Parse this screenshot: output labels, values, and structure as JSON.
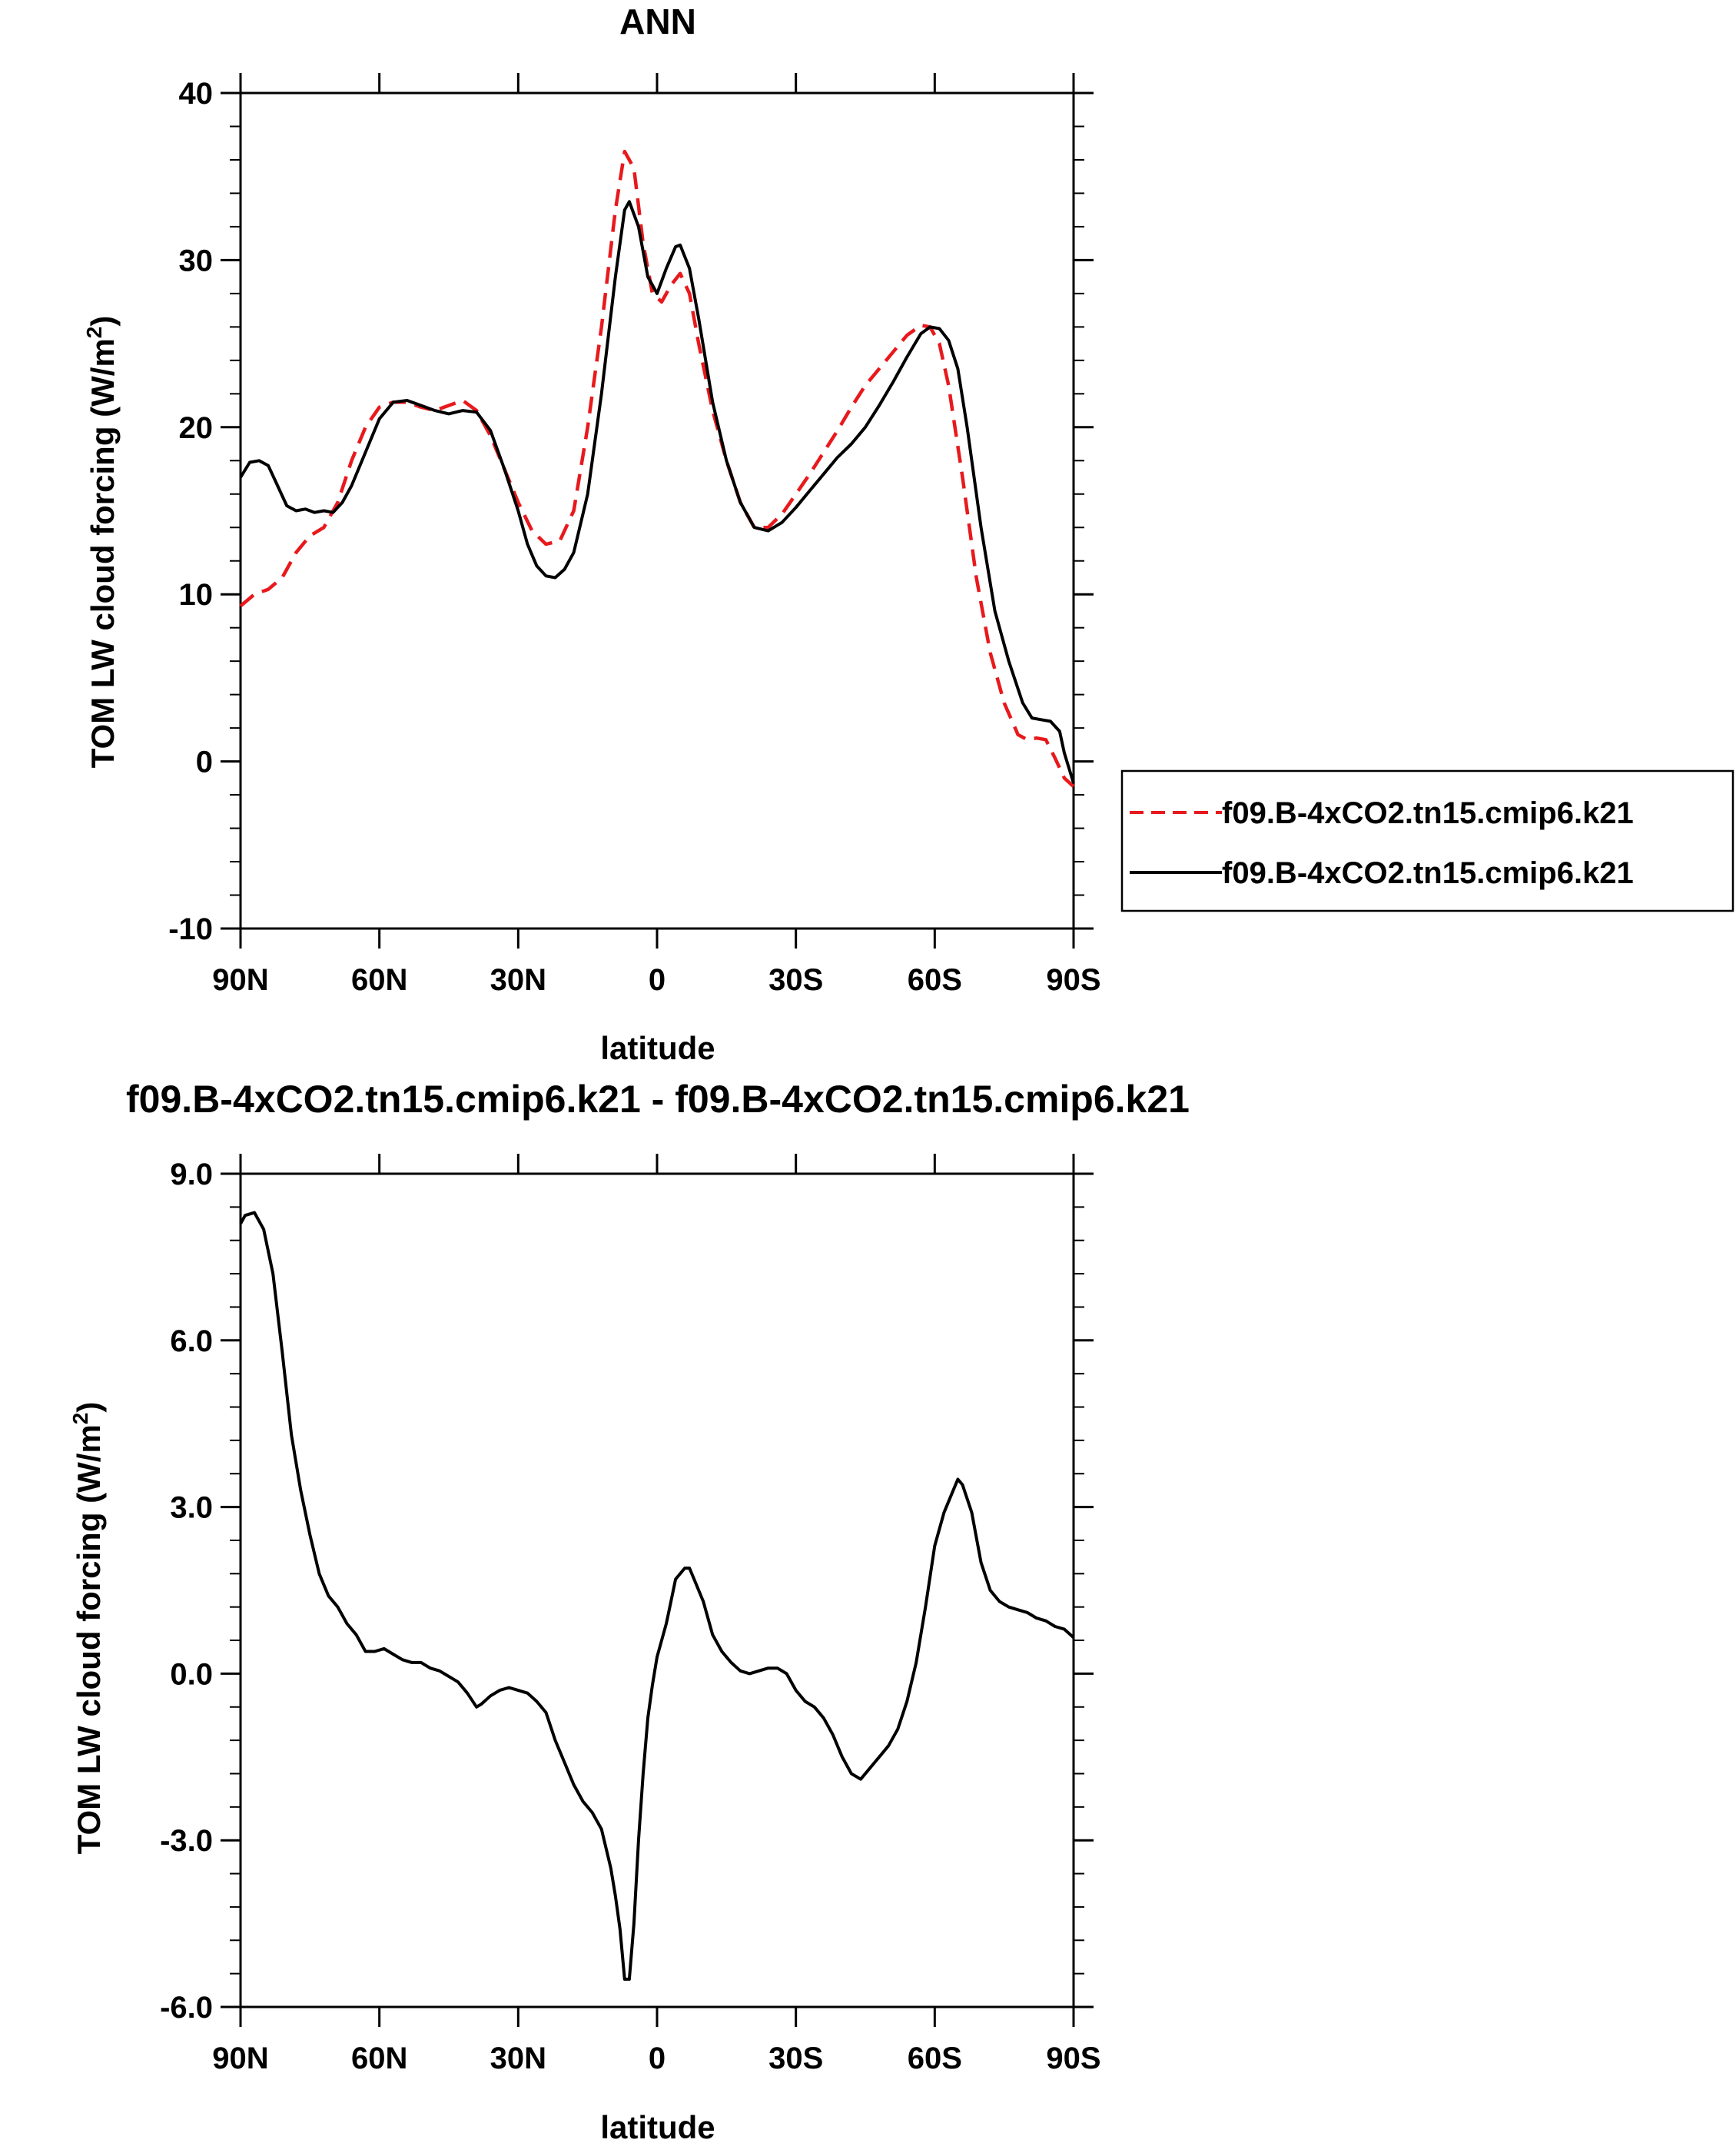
{
  "chart_data": [
    {
      "type": "line",
      "title": "ANN",
      "xlabel": "latitude",
      "ylabel_main": "TOM LW cloud forcing (W/m",
      "ylabel_sup": "2",
      "ylabel_close": ")",
      "xlim": [
        90,
        -90
      ],
      "ylim": [
        -10,
        40
      ],
      "x_ticks": [
        90,
        60,
        30,
        0,
        -30,
        -60,
        -90
      ],
      "x_tick_labels": [
        "90N",
        "60N",
        "30N",
        "0",
        "30S",
        "60S",
        "90S"
      ],
      "y_ticks": [
        -10,
        0,
        10,
        20,
        30,
        40
      ],
      "y_tick_labels": [
        "-10",
        "0",
        "10",
        "20",
        "30",
        "40"
      ],
      "grid": false,
      "legend_position": "right",
      "series": [
        {
          "name": "f09.B-4xCO2.tn15.cmip6.k21",
          "color": "#e8191c",
          "style": "dashed",
          "points": [
            [
              90,
              9.3
            ],
            [
              87,
              10
            ],
            [
              84,
              10.3
            ],
            [
              81,
              11
            ],
            [
              78,
              12.5
            ],
            [
              75,
              13.5
            ],
            [
              72,
              14
            ],
            [
              69,
              15.5
            ],
            [
              66,
              18
            ],
            [
              63,
              20
            ],
            [
              60,
              21.2
            ],
            [
              57,
              21.5
            ],
            [
              54,
              21.5
            ],
            [
              51,
              21.2
            ],
            [
              48,
              21
            ],
            [
              45,
              21.3
            ],
            [
              42,
              21.6
            ],
            [
              39,
              21
            ],
            [
              36,
              19.5
            ],
            [
              33,
              17.5
            ],
            [
              30,
              15.5
            ],
            [
              27,
              13.8
            ],
            [
              24,
              13
            ],
            [
              21,
              13.2
            ],
            [
              18,
              15
            ],
            [
              15,
              20
            ],
            [
              12,
              26
            ],
            [
              9,
              33
            ],
            [
              7,
              36.5
            ],
            [
              5,
              35.5
            ],
            [
              3,
              31
            ],
            [
              1,
              28
            ],
            [
              -1,
              27.5
            ],
            [
              -3,
              28.5
            ],
            [
              -5,
              29.2
            ],
            [
              -7,
              28
            ],
            [
              -9,
              25
            ],
            [
              -12,
              21
            ],
            [
              -15,
              18
            ],
            [
              -18,
              15.5
            ],
            [
              -21,
              14
            ],
            [
              -24,
              14
            ],
            [
              -27,
              14.8
            ],
            [
              -30,
              16
            ],
            [
              -33,
              17.2
            ],
            [
              -36,
              18.5
            ],
            [
              -39,
              19.8
            ],
            [
              -42,
              21.2
            ],
            [
              -45,
              22.5
            ],
            [
              -48,
              23.5
            ],
            [
              -51,
              24.5
            ],
            [
              -54,
              25.5
            ],
            [
              -57,
              26.1
            ],
            [
              -59,
              26
            ],
            [
              -61,
              25
            ],
            [
              -63,
              22.5
            ],
            [
              -66,
              17
            ],
            [
              -69,
              11
            ],
            [
              -72,
              6.5
            ],
            [
              -75,
              3.5
            ],
            [
              -78,
              1.6
            ],
            [
              -80,
              1.3
            ],
            [
              -82,
              1.4
            ],
            [
              -84,
              1.3
            ],
            [
              -86,
              0.2
            ],
            [
              -88,
              -1
            ],
            [
              -90,
              -1.5
            ]
          ]
        },
        {
          "name": "f09.B-4xCO2.tn15.cmip6.k21",
          "color": "#000000",
          "style": "solid",
          "points": [
            [
              90,
              17
            ],
            [
              88,
              17.9
            ],
            [
              86,
              18
            ],
            [
              84,
              17.7
            ],
            [
              82,
              16.5
            ],
            [
              80,
              15.3
            ],
            [
              78,
              15
            ],
            [
              76,
              15.1
            ],
            [
              74,
              14.9
            ],
            [
              72,
              15
            ],
            [
              70,
              14.9
            ],
            [
              68,
              15.5
            ],
            [
              66,
              16.5
            ],
            [
              63,
              18.5
            ],
            [
              60,
              20.5
            ],
            [
              57,
              21.5
            ],
            [
              54,
              21.6
            ],
            [
              51,
              21.3
            ],
            [
              48,
              21
            ],
            [
              45,
              20.8
            ],
            [
              42,
              21
            ],
            [
              39,
              20.9
            ],
            [
              36,
              19.8
            ],
            [
              33,
              17.5
            ],
            [
              30,
              15
            ],
            [
              28,
              13
            ],
            [
              26,
              11.7
            ],
            [
              24,
              11.1
            ],
            [
              22,
              11
            ],
            [
              20,
              11.5
            ],
            [
              18,
              12.5
            ],
            [
              15,
              16
            ],
            [
              12,
              22
            ],
            [
              9,
              29
            ],
            [
              7,
              33
            ],
            [
              6,
              33.5
            ],
            [
              4,
              32
            ],
            [
              2,
              29
            ],
            [
              0,
              28
            ],
            [
              -2,
              29.5
            ],
            [
              -4,
              30.8
            ],
            [
              -5,
              30.9
            ],
            [
              -7,
              29.5
            ],
            [
              -9,
              26.5
            ],
            [
              -12,
              21.5
            ],
            [
              -15,
              18
            ],
            [
              -18,
              15.5
            ],
            [
              -21,
              14
            ],
            [
              -24,
              13.8
            ],
            [
              -27,
              14.3
            ],
            [
              -30,
              15.2
            ],
            [
              -33,
              16.2
            ],
            [
              -36,
              17.2
            ],
            [
              -39,
              18.2
            ],
            [
              -42,
              19
            ],
            [
              -45,
              20
            ],
            [
              -48,
              21.3
            ],
            [
              -51,
              22.7
            ],
            [
              -54,
              24.2
            ],
            [
              -57,
              25.6
            ],
            [
              -59,
              26
            ],
            [
              -61,
              25.9
            ],
            [
              -63,
              25.2
            ],
            [
              -65,
              23.5
            ],
            [
              -67,
              20
            ],
            [
              -70,
              14
            ],
            [
              -73,
              9
            ],
            [
              -76,
              6
            ],
            [
              -79,
              3.5
            ],
            [
              -81,
              2.6
            ],
            [
              -83,
              2.5
            ],
            [
              -85,
              2.4
            ],
            [
              -87,
              1.8
            ],
            [
              -88,
              0.5
            ],
            [
              -90,
              -1.3
            ]
          ]
        }
      ]
    },
    {
      "type": "line",
      "title": "f09.B-4xCO2.tn15.cmip6.k21 - f09.B-4xCO2.tn15.cmip6.k21",
      "xlabel": "latitude",
      "ylabel_main": "TOM LW cloud forcing (W/m",
      "ylabel_sup": "2",
      "ylabel_close": ")",
      "xlim": [
        90,
        -90
      ],
      "ylim": [
        -6,
        9
      ],
      "x_ticks": [
        90,
        60,
        30,
        0,
        -30,
        -60,
        -90
      ],
      "x_tick_labels": [
        "90N",
        "60N",
        "30N",
        "0",
        "30S",
        "60S",
        "90S"
      ],
      "y_ticks": [
        -6,
        -3,
        0,
        3,
        6,
        9
      ],
      "y_tick_labels": [
        "-6.0",
        "-3.0",
        "0.0",
        "3.0",
        "6.0",
        "9.0"
      ],
      "grid": false,
      "series": [
        {
          "color": "#000000",
          "style": "solid",
          "points": [
            [
              90,
              8.1
            ],
            [
              89,
              8.25
            ],
            [
              87,
              8.3
            ],
            [
              85,
              8
            ],
            [
              83,
              7.2
            ],
            [
              81,
              5.8
            ],
            [
              79,
              4.3
            ],
            [
              77,
              3.3
            ],
            [
              75,
              2.5
            ],
            [
              73,
              1.8
            ],
            [
              71,
              1.4
            ],
            [
              69,
              1.2
            ],
            [
              67,
              0.9
            ],
            [
              65,
              0.7
            ],
            [
              63,
              0.4
            ],
            [
              61,
              0.4
            ],
            [
              59,
              0.45
            ],
            [
              57,
              0.35
            ],
            [
              55,
              0.25
            ],
            [
              53,
              0.2
            ],
            [
              51,
              0.2
            ],
            [
              49,
              0.1
            ],
            [
              47,
              0.05
            ],
            [
              45,
              -0.05
            ],
            [
              43,
              -0.15
            ],
            [
              41,
              -0.35
            ],
            [
              39,
              -0.6
            ],
            [
              38,
              -0.55
            ],
            [
              36,
              -0.4
            ],
            [
              34,
              -0.3
            ],
            [
              32,
              -0.25
            ],
            [
              30,
              -0.3
            ],
            [
              28,
              -0.35
            ],
            [
              26,
              -0.5
            ],
            [
              24,
              -0.7
            ],
            [
              22,
              -1.2
            ],
            [
              20,
              -1.6
            ],
            [
              18,
              -2
            ],
            [
              16,
              -2.3
            ],
            [
              14,
              -2.5
            ],
            [
              12,
              -2.8
            ],
            [
              10,
              -3.5
            ],
            [
              9,
              -4
            ],
            [
              8,
              -4.6
            ],
            [
              7,
              -5.5
            ],
            [
              6,
              -5.5
            ],
            [
              5,
              -4.5
            ],
            [
              4,
              -3
            ],
            [
              3,
              -1.8
            ],
            [
              2,
              -0.8
            ],
            [
              1,
              -0.2
            ],
            [
              0,
              0.3
            ],
            [
              -1,
              0.6
            ],
            [
              -2,
              0.9
            ],
            [
              -3,
              1.3
            ],
            [
              -4,
              1.7
            ],
            [
              -6,
              1.9
            ],
            [
              -7,
              1.9
            ],
            [
              -8,
              1.7
            ],
            [
              -10,
              1.3
            ],
            [
              -12,
              0.7
            ],
            [
              -14,
              0.4
            ],
            [
              -16,
              0.2
            ],
            [
              -18,
              0.05
            ],
            [
              -20,
              0
            ],
            [
              -22,
              0.05
            ],
            [
              -24,
              0.1
            ],
            [
              -26,
              0.1
            ],
            [
              -28,
              0
            ],
            [
              -30,
              -0.3
            ],
            [
              -32,
              -0.5
            ],
            [
              -34,
              -0.6
            ],
            [
              -36,
              -0.8
            ],
            [
              -38,
              -1.1
            ],
            [
              -40,
              -1.5
            ],
            [
              -42,
              -1.8
            ],
            [
              -44,
              -1.9
            ],
            [
              -46,
              -1.7
            ],
            [
              -48,
              -1.5
            ],
            [
              -50,
              -1.3
            ],
            [
              -52,
              -1
            ],
            [
              -54,
              -0.5
            ],
            [
              -56,
              0.2
            ],
            [
              -58,
              1.2
            ],
            [
              -60,
              2.3
            ],
            [
              -62,
              2.9
            ],
            [
              -64,
              3.3
            ],
            [
              -65,
              3.5
            ],
            [
              -66,
              3.4
            ],
            [
              -68,
              2.9
            ],
            [
              -70,
              2
            ],
            [
              -72,
              1.5
            ],
            [
              -74,
              1.3
            ],
            [
              -76,
              1.2
            ],
            [
              -78,
              1.15
            ],
            [
              -80,
              1.1
            ],
            [
              -82,
              1
            ],
            [
              -84,
              0.95
            ],
            [
              -86,
              0.85
            ],
            [
              -88,
              0.8
            ],
            [
              -90,
              0.65
            ]
          ]
        }
      ]
    }
  ]
}
